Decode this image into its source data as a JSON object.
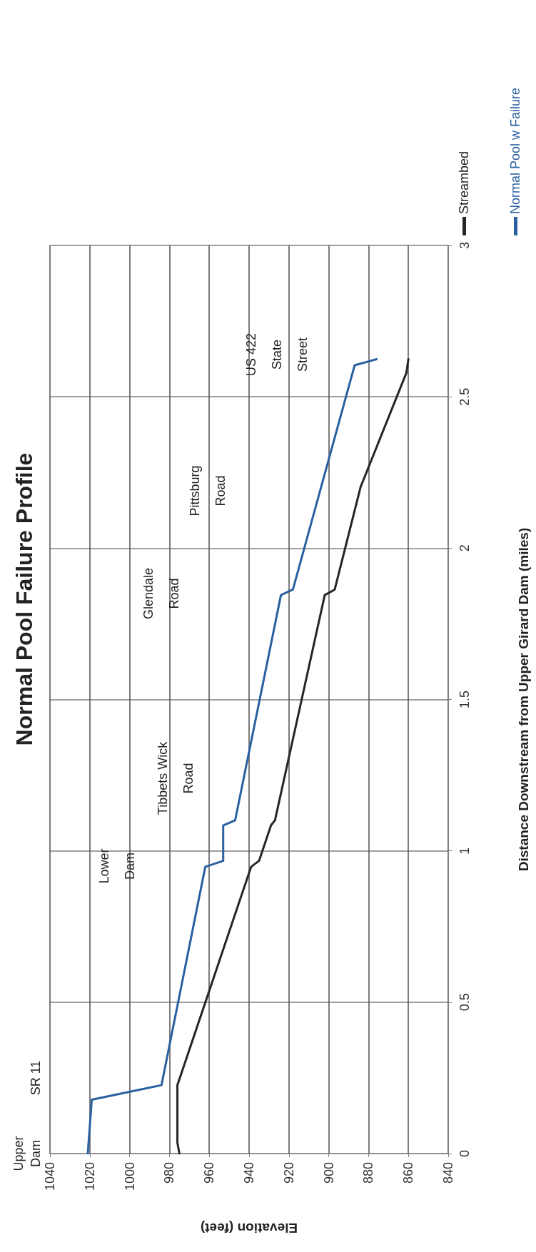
{
  "chart_data": {
    "type": "line",
    "title": "Normal Pool Failure Profile",
    "xlabel": "Elevation (feet)",
    "ylabel": "Distance Downstream from Upper Girard Dam (miles)",
    "xlim": [
      1040,
      840
    ],
    "xticks": [
      1040,
      1020,
      1000,
      980,
      960,
      940,
      920,
      900,
      880,
      860,
      840
    ],
    "ylim": [
      0,
      3
    ],
    "yticks": [
      0,
      0.5,
      1,
      1.5,
      2,
      2.5,
      3
    ],
    "grid": true,
    "legend": "top right",
    "marker": "none",
    "line_style": "solid",
    "series": [
      {
        "name": "Streambed",
        "color": "#262626",
        "x": [
          975,
          976,
          976,
          939,
          935,
          929,
          927,
          902,
          897,
          884,
          861,
          860
        ],
        "values": [
          0,
          0.036,
          0.226,
          0.947,
          0.967,
          1.084,
          1.101,
          1.845,
          1.863,
          2.202,
          2.579,
          2.624
        ]
      },
      {
        "name": "Normal Pool w Failure",
        "color": "#2a5fa0",
        "x": [
          1021,
          1019,
          984,
          962,
          953,
          953,
          947,
          924,
          918,
          887,
          876
        ],
        "values": [
          0,
          0.178,
          0.226,
          0.947,
          0.967,
          1.084,
          1.101,
          1.845,
          1.863,
          2.604,
          2.624
        ]
      }
    ],
    "annotations": [
      "Upper\nDam",
      "SR 11",
      "Lower\nDam",
      "Tibbets Wick\nRoad",
      "Glendale\nRoad",
      "Pittsburg\nRoad",
      "US 422\nState\nStreet"
    ]
  }
}
